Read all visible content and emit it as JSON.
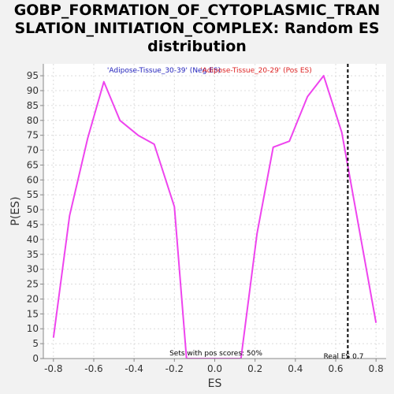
{
  "chart_data": {
    "type": "line",
    "title_lines": [
      "GOBP_FORMATION_OF_CYTOPLASMIC_TRAN",
      "SLATION_INITIATION_COMPLEX: Random ES",
      "distribution"
    ],
    "xlabel": "ES",
    "ylabel": "P(ES)",
    "xlim": [
      -0.85,
      0.85
    ],
    "ylim": [
      0,
      99
    ],
    "xticks": [
      -0.8,
      -0.6,
      -0.4,
      -0.2,
      0.0,
      0.2,
      0.4,
      0.6,
      0.8
    ],
    "xtick_labels": [
      "-0.8",
      "-0.6",
      "-0.4",
      "-0.2",
      "0.0",
      "0.2",
      "0.4",
      "0.6",
      "0.8"
    ],
    "yticks": [
      0,
      5,
      10,
      15,
      20,
      25,
      30,
      35,
      40,
      45,
      50,
      55,
      60,
      65,
      70,
      75,
      80,
      85,
      90,
      95
    ],
    "grid": true,
    "series": [
      {
        "color": "#ee44ee",
        "x": [
          -0.8,
          -0.72,
          -0.63,
          -0.55,
          -0.47,
          -0.38,
          -0.3,
          -0.2,
          -0.14,
          0.13,
          0.21,
          0.29,
          0.37,
          0.46,
          0.54,
          0.63,
          0.8
        ],
        "y": [
          7,
          48,
          74,
          93,
          80,
          75,
          72,
          51,
          0,
          0,
          42,
          71,
          73,
          88,
          95,
          76,
          12
        ]
      }
    ],
    "legend": [
      {
        "text": "'Adipose-Tissue_30-39' (Neg ES)",
        "color": "#2222bb"
      },
      {
        "text": "'Adipose-Tissue_20-29' (Pos ES)",
        "color": "#dd2222"
      }
    ],
    "real_es": {
      "value": 0.66,
      "label": "Real ES 0.7"
    },
    "pos_note": "Sets with pos scores: 50%"
  }
}
